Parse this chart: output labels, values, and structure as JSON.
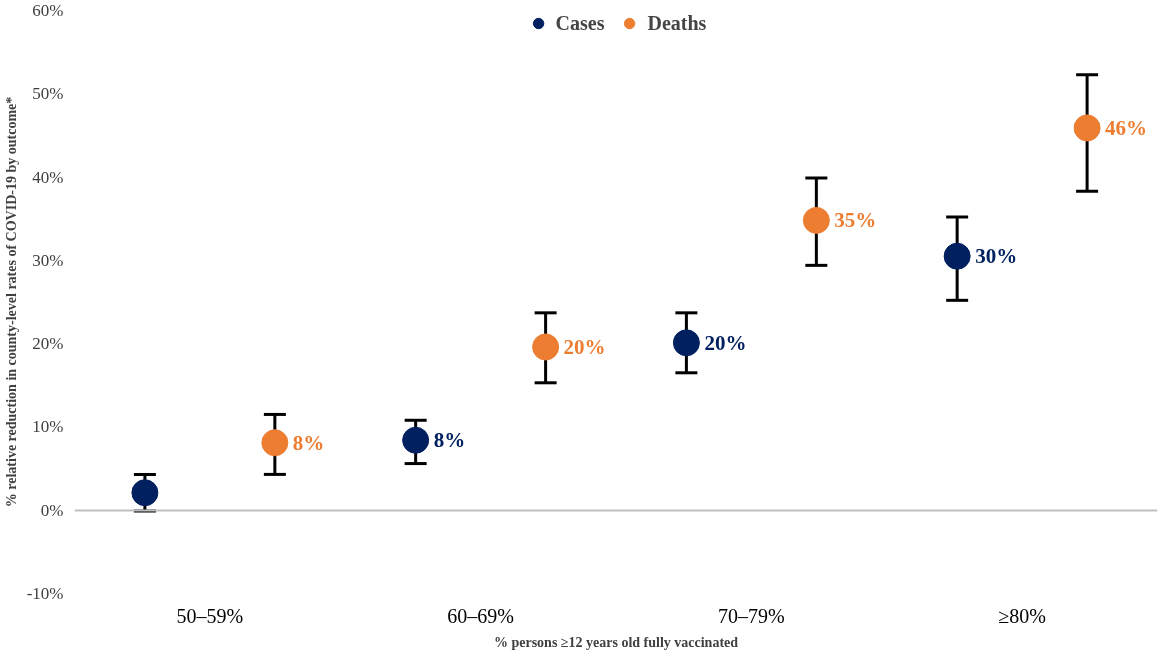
{
  "chart_data": {
    "type": "scatter",
    "xlabel": "% persons ≥12 years old fully vaccinated",
    "ylabel": "% relative reduction in county-level rates of COVID-19 by outcome*",
    "categories": [
      "50–59%",
      "60–69%",
      "70–79%",
      "≥80%"
    ],
    "series": [
      {
        "name": "Cases",
        "color": "#002060",
        "values": [
          2.1,
          8.4,
          20.1,
          30.5
        ],
        "errors": [
          [
            -0.1,
            4.3
          ],
          [
            5.6,
            10.8
          ],
          [
            16.5,
            23.7
          ],
          [
            25.2,
            35.2
          ]
        ],
        "value_labels": [
          null,
          "8%",
          "20%",
          "30%"
        ]
      },
      {
        "name": "Deaths",
        "color": "#ed7d31",
        "values": [
          8.1,
          19.6,
          34.8,
          45.9
        ],
        "errors": [
          [
            4.3,
            11.5
          ],
          [
            15.3,
            23.7
          ],
          [
            29.4,
            39.9
          ],
          [
            38.3,
            52.3
          ]
        ],
        "value_labels": [
          "8%",
          "20%",
          "35%",
          "46%"
        ]
      }
    ],
    "ylim": [
      -10,
      60
    ],
    "yticks": [
      {
        "value": -10,
        "label": "-10%"
      },
      {
        "value": 0,
        "label": "0%"
      },
      {
        "value": 10,
        "label": "10%"
      },
      {
        "value": 20,
        "label": "20%"
      },
      {
        "value": 30,
        "label": "30%"
      },
      {
        "value": 40,
        "label": "40%"
      },
      {
        "value": 50,
        "label": "50%"
      },
      {
        "value": 60,
        "label": "60%"
      }
    ],
    "ref_lines": [
      {
        "axis": "y",
        "value": 0,
        "color": "#bfbfbf"
      }
    ],
    "grid": false,
    "legend": "top",
    "marker": "circle"
  }
}
